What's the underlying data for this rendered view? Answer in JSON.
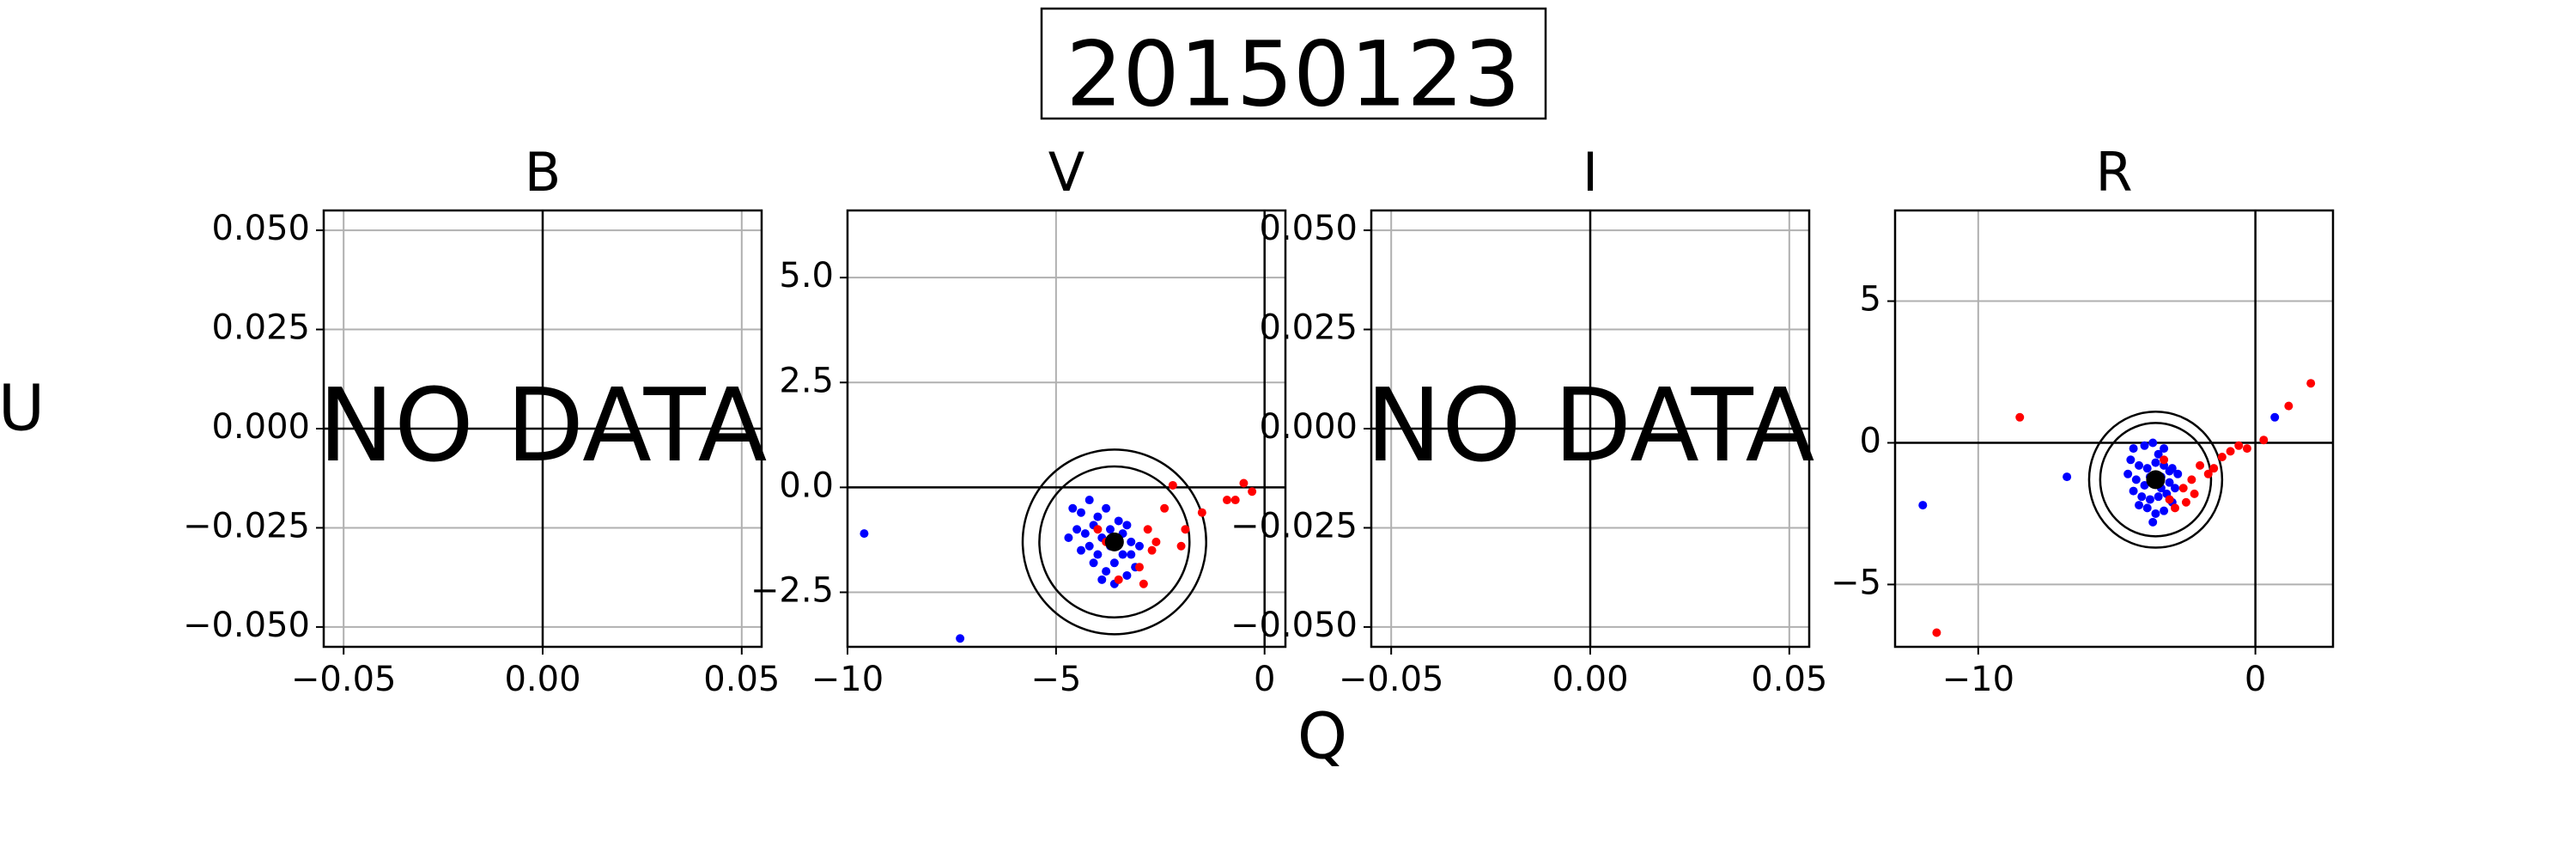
{
  "title": "20150123",
  "xlabel": "Q",
  "ylabel": "U",
  "colors": {
    "series_a": "#ff0000",
    "series_b": "#0000ff",
    "mean": "#000000"
  },
  "chart_data": [
    {
      "type": "scatter",
      "title": "B",
      "no_data": true,
      "no_data_text": "NO DATA",
      "xlim": [
        -0.055,
        0.055
      ],
      "ylim": [
        -0.055,
        0.055
      ],
      "xticks": [
        -0.05,
        0.0,
        0.05
      ],
      "xtick_labels": [
        "−0.05",
        "0.00",
        "0.05"
      ],
      "yticks": [
        -0.05,
        -0.025,
        0.0,
        0.025,
        0.05
      ],
      "ytick_labels": [
        "−0.050",
        "−0.025",
        "0.000",
        "0.025",
        "0.050"
      ],
      "grid": true
    },
    {
      "type": "scatter",
      "title": "V",
      "no_data": false,
      "xlim": [
        -10,
        0.5
      ],
      "ylim": [
        -3.8,
        6.6
      ],
      "xticks": [
        -10,
        -5,
        0
      ],
      "xtick_labels": [
        "−10",
        "−5",
        "0"
      ],
      "yticks": [
        -2.5,
        0.0,
        2.5,
        5.0
      ],
      "ytick_labels": [
        "−2.5",
        "0.0",
        "2.5",
        "5.0"
      ],
      "grid": true,
      "center": [
        -3.6,
        -1.3
      ],
      "circle_radii": [
        2.2,
        1.8
      ],
      "series": [
        {
          "color_key": "series_b",
          "points": [
            [
              -9.6,
              -1.1
            ],
            [
              -7.3,
              -3.6
            ],
            [
              -4.6,
              -0.5
            ],
            [
              -4.4,
              -0.6
            ],
            [
              -4.2,
              -0.3
            ],
            [
              -4.0,
              -0.7
            ],
            [
              -3.8,
              -0.5
            ],
            [
              -4.5,
              -1.0
            ],
            [
              -4.7,
              -1.2
            ],
            [
              -4.3,
              -1.1
            ],
            [
              -4.1,
              -0.9
            ],
            [
              -3.9,
              -1.2
            ],
            [
              -3.7,
              -1.4
            ],
            [
              -3.5,
              -1.2
            ],
            [
              -3.3,
              -0.9
            ],
            [
              -3.2,
              -1.3
            ],
            [
              -3.0,
              -1.4
            ],
            [
              -3.4,
              -1.6
            ],
            [
              -3.6,
              -1.8
            ],
            [
              -3.8,
              -2.0
            ],
            [
              -4.0,
              -1.6
            ],
            [
              -4.2,
              -1.4
            ],
            [
              -3.9,
              -2.2
            ],
            [
              -3.6,
              -2.3
            ],
            [
              -3.3,
              -2.1
            ],
            [
              -3.1,
              -1.9
            ],
            [
              -4.4,
              -1.5
            ],
            [
              -3.5,
              -0.8
            ],
            [
              -3.7,
              -1.0
            ],
            [
              -3.4,
              -1.1
            ],
            [
              -4.1,
              -1.8
            ],
            [
              -3.2,
              -1.6
            ]
          ]
        },
        {
          "color_key": "series_a",
          "points": [
            [
              -0.7,
              -0.3
            ],
            [
              -0.5,
              0.1
            ],
            [
              -0.9,
              -0.3
            ],
            [
              -0.3,
              -0.1
            ],
            [
              -1.5,
              -0.6
            ],
            [
              -1.9,
              -1.0
            ],
            [
              -2.2,
              0.05
            ],
            [
              -2.0,
              -1.4
            ],
            [
              -2.8,
              -1.0
            ],
            [
              -2.6,
              -1.3
            ],
            [
              -2.9,
              -2.3
            ],
            [
              -3.0,
              -1.9
            ],
            [
              -3.5,
              -2.2
            ],
            [
              -2.7,
              -1.5
            ],
            [
              -2.4,
              -0.5
            ],
            [
              -4.0,
              -1.0
            ],
            [
              -3.8,
              -1.3
            ]
          ]
        }
      ]
    },
    {
      "type": "scatter",
      "title": "I",
      "no_data": true,
      "no_data_text": "NO DATA",
      "xlim": [
        -0.055,
        0.055
      ],
      "ylim": [
        -0.055,
        0.055
      ],
      "xticks": [
        -0.05,
        0.0,
        0.05
      ],
      "xtick_labels": [
        "−0.05",
        "0.00",
        "0.05"
      ],
      "yticks": [
        -0.05,
        -0.025,
        0.0,
        0.025,
        0.05
      ],
      "ytick_labels": [
        "−0.050",
        "−0.025",
        "0.000",
        "0.025",
        "0.050"
      ],
      "grid": true
    },
    {
      "type": "scatter",
      "title": "R",
      "no_data": false,
      "xlim": [
        -13,
        2.8
      ],
      "ylim": [
        -7.2,
        8.2
      ],
      "xticks": [
        -10,
        0
      ],
      "xtick_labels": [
        "−10",
        "0"
      ],
      "yticks": [
        -5,
        0,
        5
      ],
      "ytick_labels": [
        "−5",
        "0",
        "5"
      ],
      "grid": true,
      "center": [
        -3.6,
        -1.3
      ],
      "circle_radii": [
        2.4,
        2.0
      ],
      "series": [
        {
          "color_key": "series_b",
          "points": [
            [
              -12.0,
              -2.2
            ],
            [
              -6.8,
              -1.2
            ],
            [
              -4.4,
              -0.2
            ],
            [
              -4.0,
              -0.1
            ],
            [
              -3.7,
              0.0
            ],
            [
              -3.3,
              -0.2
            ],
            [
              -4.5,
              -0.6
            ],
            [
              -4.2,
              -0.8
            ],
            [
              -3.9,
              -0.9
            ],
            [
              -3.6,
              -0.7
            ],
            [
              -3.3,
              -0.8
            ],
            [
              -3.0,
              -0.9
            ],
            [
              -2.8,
              -1.1
            ],
            [
              -4.6,
              -1.1
            ],
            [
              -4.3,
              -1.3
            ],
            [
              -4.0,
              -1.5
            ],
            [
              -3.7,
              -1.4
            ],
            [
              -3.4,
              -1.2
            ],
            [
              -3.1,
              -1.4
            ],
            [
              -2.9,
              -1.6
            ],
            [
              -4.4,
              -1.7
            ],
            [
              -4.1,
              -1.9
            ],
            [
              -3.8,
              -2.0
            ],
            [
              -3.5,
              -1.9
            ],
            [
              -3.2,
              -1.8
            ],
            [
              -3.0,
              -2.1
            ],
            [
              -3.9,
              -2.3
            ],
            [
              -3.6,
              -2.5
            ],
            [
              -3.3,
              -2.4
            ],
            [
              -3.7,
              -2.8
            ],
            [
              -3.4,
              -1.6
            ],
            [
              -3.8,
              -1.2
            ],
            [
              -4.2,
              -2.2
            ],
            [
              -3.1,
              -1.0
            ],
            [
              -3.5,
              -0.4
            ],
            [
              0.7,
              0.9
            ]
          ]
        },
        {
          "color_key": "series_a",
          "points": [
            [
              -8.5,
              0.9
            ],
            [
              -11.5,
              -6.7
            ],
            [
              2.0,
              2.1
            ],
            [
              1.2,
              1.3
            ],
            [
              0.3,
              0.1
            ],
            [
              -0.3,
              -0.2
            ],
            [
              -0.6,
              -0.1
            ],
            [
              -0.9,
              -0.3
            ],
            [
              -1.2,
              -0.5
            ],
            [
              -1.5,
              -0.9
            ],
            [
              -1.7,
              -1.1
            ],
            [
              -2.0,
              -0.8
            ],
            [
              -2.3,
              -1.3
            ],
            [
              -2.6,
              -1.6
            ],
            [
              -2.9,
              -2.3
            ],
            [
              -3.1,
              -2.0
            ],
            [
              -2.5,
              -2.1
            ],
            [
              -3.3,
              -0.6
            ],
            [
              -2.2,
              -1.8
            ]
          ]
        }
      ]
    }
  ]
}
